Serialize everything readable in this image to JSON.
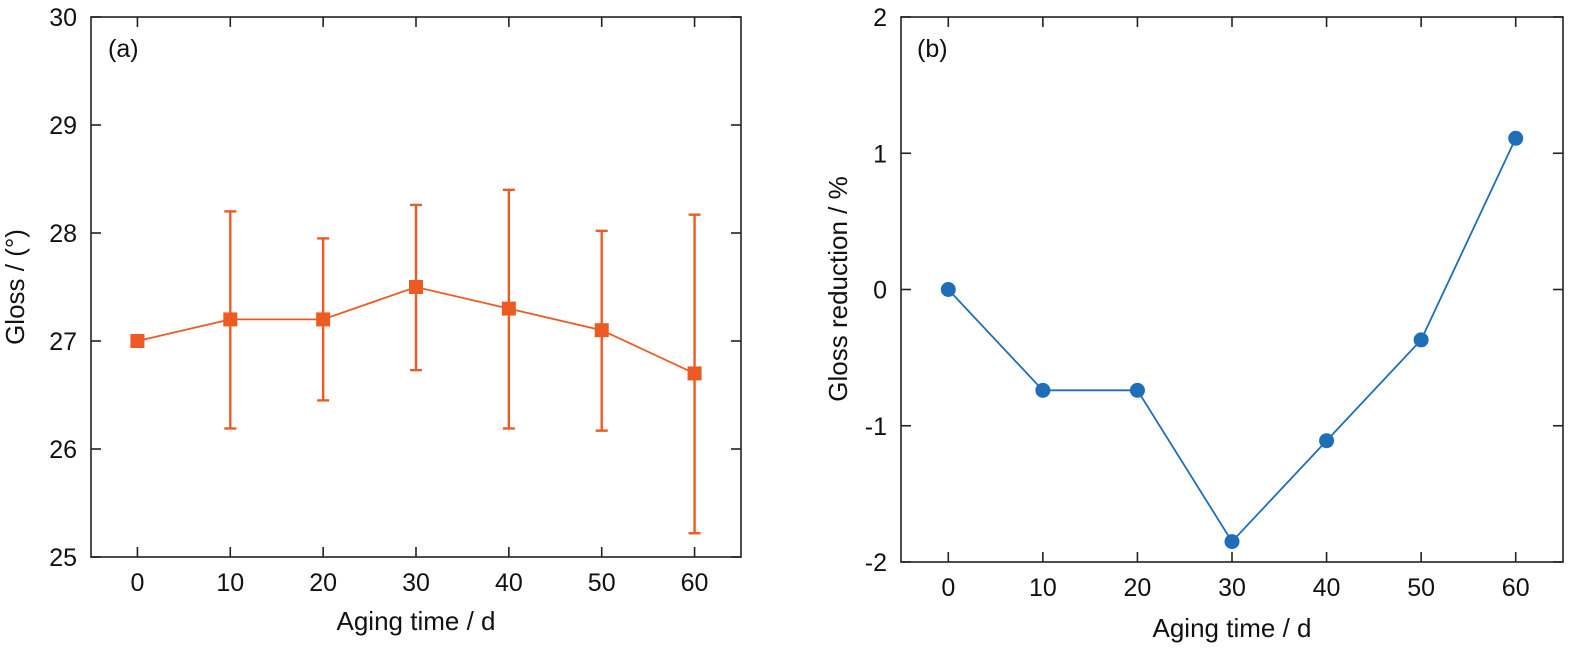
{
  "chart_data": [
    {
      "type": "line",
      "panel_label": "(a)",
      "xlabel": "Aging time / d",
      "ylabel": "Gloss / (°)",
      "x": [
        0,
        10,
        20,
        30,
        40,
        50,
        60
      ],
      "xlim": [
        -5,
        65
      ],
      "ylim": [
        25,
        30
      ],
      "xticks": [
        "0",
        "10",
        "20",
        "30",
        "40",
        "50",
        "60"
      ],
      "yticks": [
        "25",
        "26",
        "27",
        "28",
        "29",
        "30"
      ],
      "marker": "square",
      "color": "#EE5A24",
      "series": [
        {
          "values": [
            27.0,
            27.2,
            27.2,
            27.5,
            27.3,
            27.1,
            26.7
          ],
          "error_upper": [
            27.0,
            28.2,
            27.95,
            28.26,
            28.4,
            28.02,
            28.17
          ],
          "error_lower": [
            27.0,
            26.19,
            26.45,
            26.73,
            26.19,
            26.17,
            25.22
          ]
        }
      ]
    },
    {
      "type": "line",
      "panel_label": "(b)",
      "xlabel": "Aging time / d",
      "ylabel": "Gloss reduction / %",
      "x": [
        0,
        10,
        20,
        30,
        40,
        50,
        60
      ],
      "xlim": [
        -5,
        65
      ],
      "ylim": [
        -2,
        2
      ],
      "xticks": [
        "0",
        "10",
        "20",
        "30",
        "40",
        "50",
        "60"
      ],
      "yticks": [
        "-2",
        "-1",
        "0",
        "1",
        "2"
      ],
      "marker": "circle",
      "color": "#1F6FB8",
      "series": [
        {
          "values": [
            0.0,
            -0.74,
            -0.74,
            -1.85,
            -1.11,
            -0.37,
            1.11
          ]
        }
      ]
    }
  ]
}
